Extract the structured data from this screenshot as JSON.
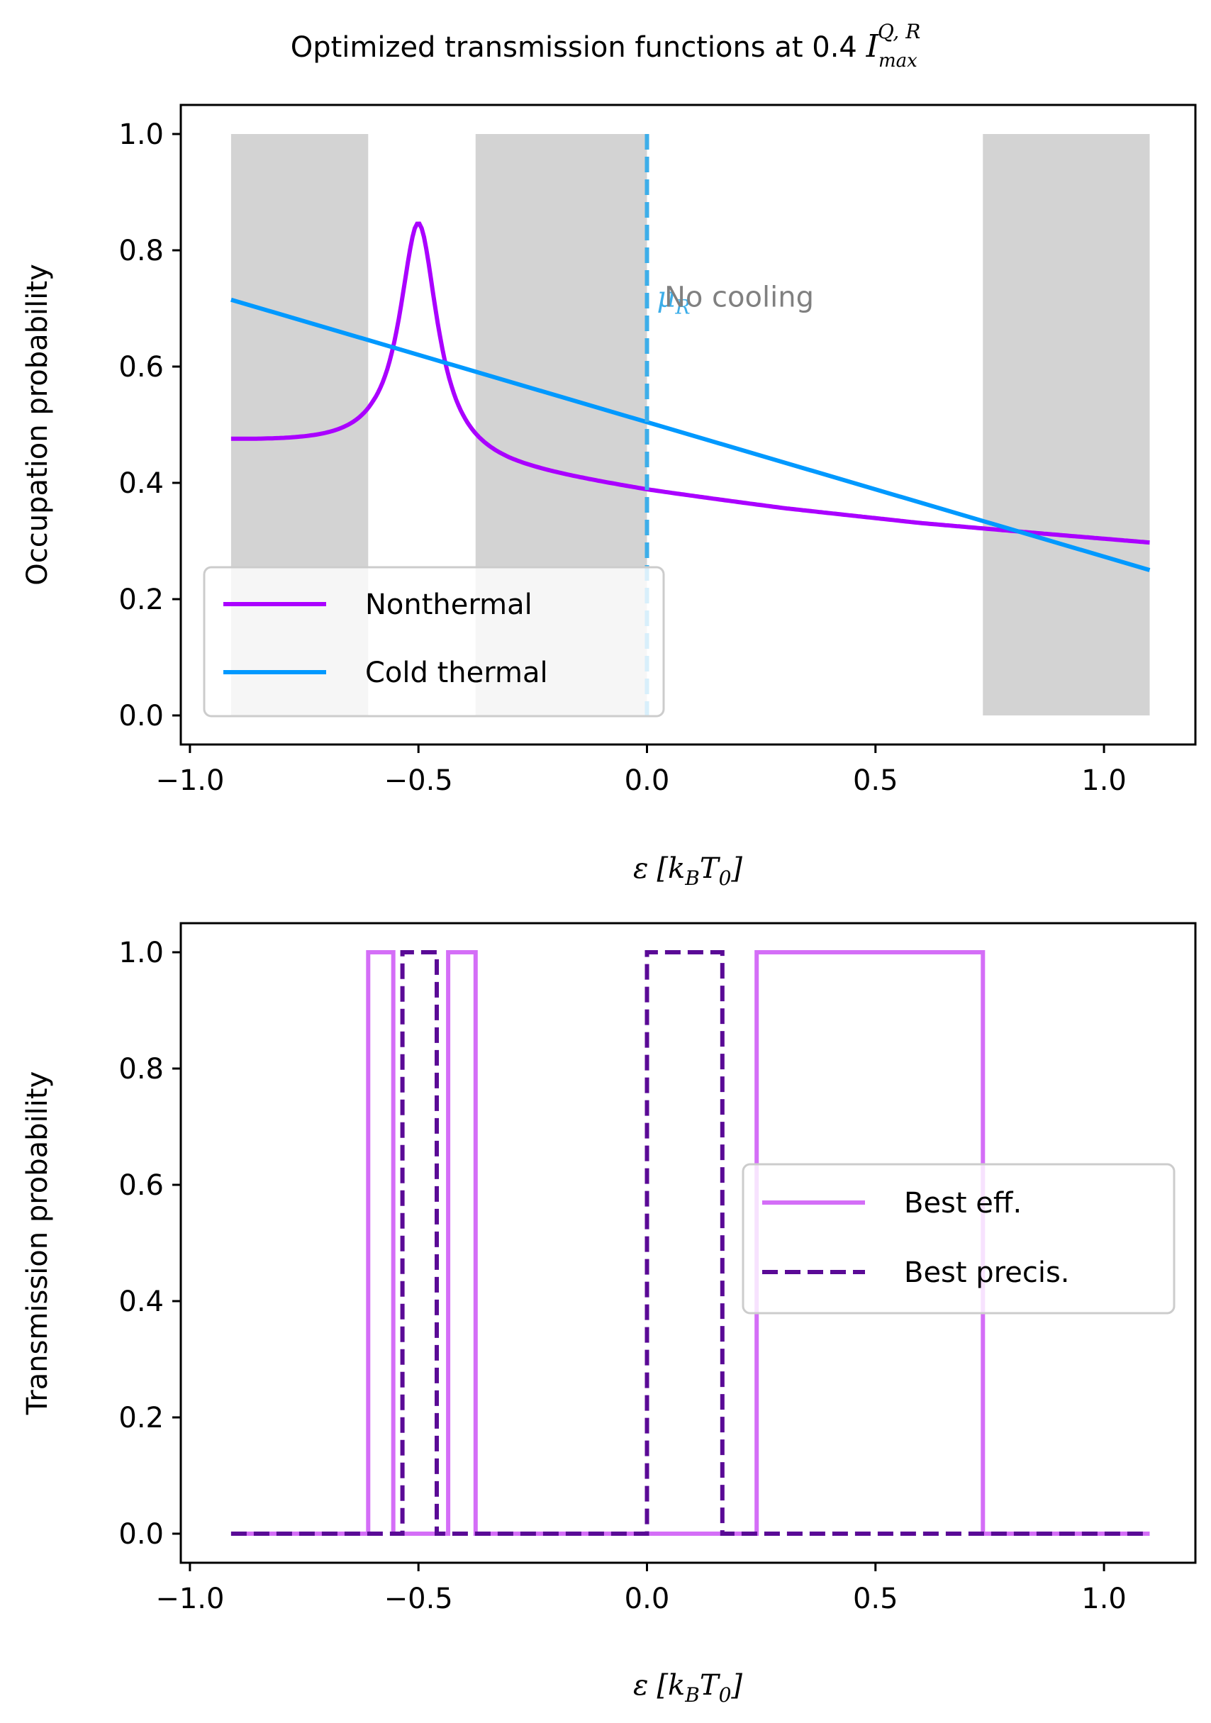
{
  "figure": {
    "title_main": "Optimized transmission functions at 0.4 ",
    "title_symbol": "I",
    "title_sub": "max",
    "title_sup": "Q, R"
  },
  "chart_data": [
    {
      "type": "line",
      "xlabel": {
        "symbol": "ε",
        "unit": "[k",
        "unit_sub": "B",
        "unit_var": "T",
        "unit_sub2": "0",
        "close": "]"
      },
      "ylabel": "Occupation probability",
      "xlim": [
        -1.02,
        1.2
      ],
      "ylim": [
        -0.05,
        1.05
      ],
      "xticks": [
        -1.0,
        -0.5,
        0.0,
        0.5,
        1.0
      ],
      "xtick_labels": [
        "−1.0",
        "−0.5",
        "0.0",
        "0.5",
        "1.0"
      ],
      "yticks": [
        0.0,
        0.2,
        0.4,
        0.6,
        0.8,
        1.0
      ],
      "ytick_labels": [
        "0.0",
        "0.2",
        "0.4",
        "0.6",
        "0.8",
        "1.0"
      ],
      "shaded_regions": [
        [
          -0.91,
          -0.61
        ],
        [
          -0.375,
          0.0
        ],
        [
          0.735,
          1.1
        ]
      ],
      "shade_color": "#d3d3d3",
      "vline": {
        "x": 0.0,
        "label": "μ",
        "label_sub": "R",
        "color": "#3daee9",
        "style": "dashed"
      },
      "annotation": {
        "text": "No cooling",
        "x": 0.1,
        "y": 0.72,
        "color": "#808080"
      },
      "series": [
        {
          "name": "Nonthermal",
          "color": "#aa00ff",
          "style": "solid",
          "peak": {
            "x0": -0.5,
            "width": 0.05,
            "height": 0.4
          },
          "background_x": [
            -0.91,
            -0.6,
            -0.3,
            0.0,
            0.3,
            0.6,
            0.9,
            1.1
          ],
          "background_y": [
            0.47,
            0.46,
            0.42,
            0.385,
            0.355,
            0.33,
            0.31,
            0.297
          ]
        },
        {
          "name": "Cold thermal",
          "color": "#0099ff",
          "style": "solid",
          "x": [
            -0.91,
            1.1
          ],
          "y": [
            0.715,
            0.25
          ]
        }
      ],
      "legend": {
        "position": "lower-left",
        "entries": [
          "Nonthermal",
          "Cold thermal"
        ]
      },
      "grid": false
    },
    {
      "type": "line",
      "xlabel": {
        "symbol": "ε",
        "unit": "[k",
        "unit_sub": "B",
        "unit_var": "T",
        "unit_sub2": "0",
        "close": "]"
      },
      "ylabel": "Transmission probability",
      "xlim": [
        -1.02,
        1.2
      ],
      "ylim": [
        -0.05,
        1.05
      ],
      "xticks": [
        -1.0,
        -0.5,
        0.0,
        0.5,
        1.0
      ],
      "xtick_labels": [
        "−1.0",
        "−0.5",
        "0.0",
        "0.5",
        "1.0"
      ],
      "yticks": [
        0.0,
        0.2,
        0.4,
        0.6,
        0.8,
        1.0
      ],
      "ytick_labels": [
        "0.0",
        "0.2",
        "0.4",
        "0.6",
        "0.8",
        "1.0"
      ],
      "series": [
        {
          "name": "Best eff.",
          "color": "#d46ef7",
          "style": "solid",
          "x": [
            -0.91,
            -0.61,
            -0.61,
            -0.555,
            -0.555,
            -0.435,
            -0.435,
            -0.375,
            -0.375,
            0.24,
            0.24,
            0.735,
            0.735,
            1.1
          ],
          "y": [
            0,
            0,
            1,
            1,
            0,
            0,
            1,
            1,
            0,
            0,
            1,
            1,
            0,
            0
          ]
        },
        {
          "name": "Best precis.",
          "color": "#5a0a96",
          "style": "dashed",
          "x": [
            -0.91,
            -0.535,
            -0.535,
            -0.46,
            -0.46,
            0.0,
            0.0,
            0.165,
            0.165,
            1.1
          ],
          "y": [
            0,
            0,
            1,
            1,
            0,
            0,
            1,
            1,
            0,
            0
          ]
        }
      ],
      "legend": {
        "position": "center-right",
        "entries": [
          "Best eff.",
          "Best precis."
        ]
      },
      "grid": false
    }
  ]
}
